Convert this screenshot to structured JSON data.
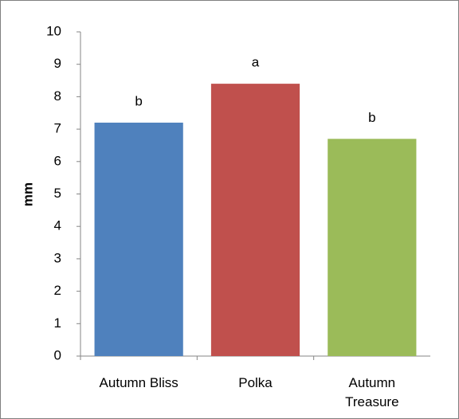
{
  "chart_data": {
    "type": "bar",
    "y_label": "mm",
    "categories": [
      "Autumn Bliss",
      "Polka",
      "Autumn Treasure"
    ],
    "values": [
      7.2,
      8.4,
      6.7
    ],
    "colors": [
      "#4f81bd",
      "#c0504d",
      "#9bbb59"
    ],
    "annotations": [
      "b",
      "a",
      "b"
    ],
    "ylim": [
      0,
      10
    ],
    "yticks": [
      0,
      1,
      2,
      3,
      4,
      5,
      6,
      7,
      8,
      9,
      10
    ],
    "grid": false
  }
}
